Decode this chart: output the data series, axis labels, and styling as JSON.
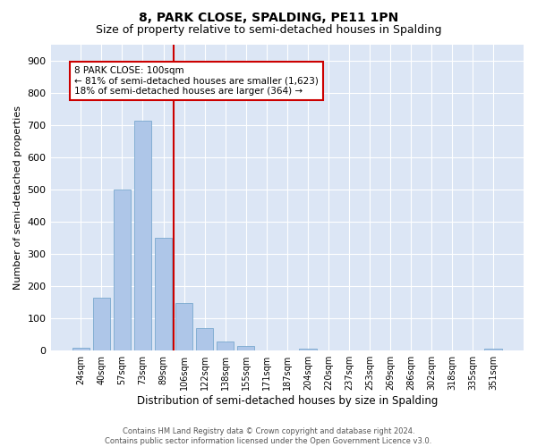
{
  "title": "8, PARK CLOSE, SPALDING, PE11 1PN",
  "subtitle": "Size of property relative to semi-detached houses in Spalding",
  "xlabel": "Distribution of semi-detached houses by size in Spalding",
  "ylabel": "Number of semi-detached properties",
  "categories": [
    "24sqm",
    "40sqm",
    "57sqm",
    "73sqm",
    "89sqm",
    "106sqm",
    "122sqm",
    "138sqm",
    "155sqm",
    "171sqm",
    "187sqm",
    "204sqm",
    "220sqm",
    "237sqm",
    "253sqm",
    "269sqm",
    "286sqm",
    "302sqm",
    "318sqm",
    "335sqm",
    "351sqm"
  ],
  "values": [
    8,
    163,
    500,
    714,
    350,
    148,
    70,
    27,
    14,
    0,
    0,
    6,
    0,
    0,
    0,
    0,
    0,
    0,
    0,
    0,
    6
  ],
  "bar_color": "#aec6e8",
  "bar_edge_color": "#6a9fc8",
  "property_line_color": "#cc0000",
  "annotation_line1": "8 PARK CLOSE: 100sqm",
  "annotation_line2": "← 81% of semi-detached houses are smaller (1,623)",
  "annotation_line3": "18% of semi-detached houses are larger (364) →",
  "annotation_box_color": "#cc0000",
  "ylim": [
    0,
    950
  ],
  "yticks": [
    0,
    100,
    200,
    300,
    400,
    500,
    600,
    700,
    800,
    900
  ],
  "background_color": "#dce6f5",
  "footer_text": "Contains HM Land Registry data © Crown copyright and database right 2024.\nContains public sector information licensed under the Open Government Licence v3.0.",
  "title_fontsize": 10,
  "subtitle_fontsize": 9,
  "xlabel_fontsize": 8.5,
  "ylabel_fontsize": 8
}
